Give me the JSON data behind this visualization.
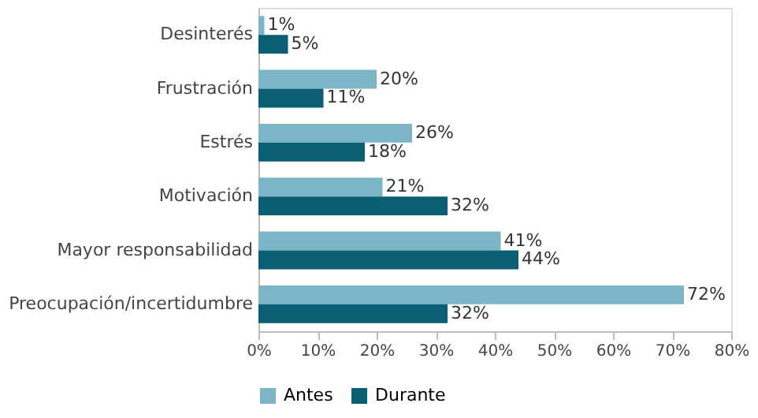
{
  "chart_data": {
    "type": "bar",
    "orientation": "horizontal",
    "categories": [
      "Desinterés",
      "Frustración",
      "Estrés",
      "Motivación",
      "Mayor responsabilidad",
      "Preocupación/incertidumbre"
    ],
    "series": [
      {
        "name": "Antes",
        "color": "#7cb5c5",
        "values": [
          1,
          20,
          26,
          21,
          41,
          72
        ],
        "value_labels": [
          "1%",
          "20%",
          "26%",
          "21%",
          "41%",
          "72%"
        ]
      },
      {
        "name": "Durante",
        "color": "#0b5f75",
        "values": [
          5,
          11,
          18,
          32,
          44,
          32
        ],
        "value_labels": [
          "5%",
          "11%",
          "18%",
          "32%",
          "44%",
          "32%"
        ]
      }
    ],
    "xlim": [
      0,
      80
    ],
    "xticks": [
      {
        "value": 0,
        "label": "0%"
      },
      {
        "value": 10,
        "label": "10%"
      },
      {
        "value": 20,
        "label": "20%"
      },
      {
        "value": 30,
        "label": "30%"
      },
      {
        "value": 40,
        "label": "40%"
      },
      {
        "value": 50,
        "label": "50%"
      },
      {
        "value": 60,
        "label": "60%"
      },
      {
        "value": 70,
        "label": "70%"
      },
      {
        "value": 80,
        "label": "80%"
      }
    ],
    "grid": false,
    "legend": "bottom"
  }
}
